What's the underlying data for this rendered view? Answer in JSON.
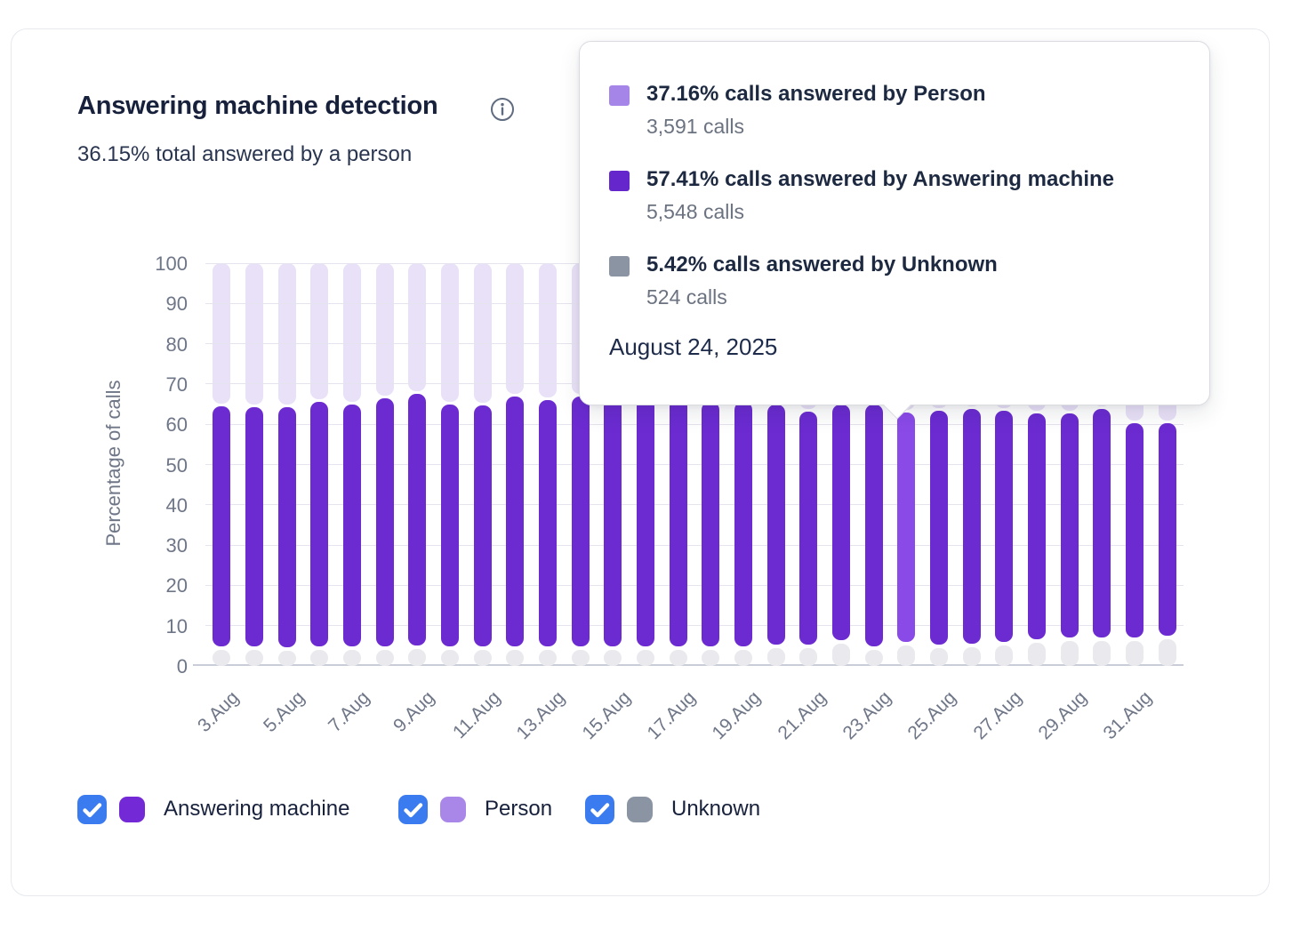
{
  "header": {
    "title": "Answering machine detection",
    "subtitle": "36.15% total answered by a person"
  },
  "tooltip": {
    "date": "August 24, 2025",
    "rows": [
      {
        "label": "37.16% calls answered by Person",
        "sublabel": "3,591 calls",
        "color": "#a685e8"
      },
      {
        "label": "57.41% calls answered by Answering machine",
        "sublabel": "5,548 calls",
        "color": "#6527cc"
      },
      {
        "label": "5.42% calls answered by Unknown",
        "sublabel": "524 calls",
        "color": "#8b94a3"
      }
    ]
  },
  "chart_data": {
    "type": "bar",
    "stacked": true,
    "title": "Answering machine detection",
    "ylabel": "Percentage of calls",
    "ylim": [
      0,
      100
    ],
    "y_ticks": [
      0,
      10,
      20,
      30,
      40,
      50,
      60,
      70,
      80,
      90,
      100
    ],
    "grid": true,
    "legend_position": "bottom",
    "x_tick_every": 2,
    "categories": [
      "3.Aug",
      "4.Aug",
      "5.Aug",
      "6.Aug",
      "7.Aug",
      "8.Aug",
      "9.Aug",
      "10.Aug",
      "11.Aug",
      "12.Aug",
      "13.Aug",
      "14.Aug",
      "15.Aug",
      "16.Aug",
      "17.Aug",
      "18.Aug",
      "19.Aug",
      "20.Aug",
      "21.Aug",
      "22.Aug",
      "23.Aug",
      "24.Aug",
      "25.Aug",
      "26.Aug",
      "27.Aug",
      "28.Aug",
      "29.Aug",
      "30.Aug",
      "31.Aug",
      "1.Sep"
    ],
    "series": [
      {
        "name": "Unknown",
        "stack_position": "bottom",
        "color": "#e9e9ee",
        "values": [
          4.4,
          4.4,
          4.2,
          4.4,
          4.4,
          4.4,
          4.6,
          4.4,
          4.4,
          4.4,
          4.4,
          4.4,
          4.4,
          4.4,
          4.4,
          4.4,
          4.4,
          4.8,
          4.8,
          5.9,
          4.4,
          5.42,
          4.8,
          5.1,
          5.5,
          6.2,
          6.6,
          6.6,
          6.6,
          7.0
        ]
      },
      {
        "name": "Answering machine",
        "stack_position": "middle",
        "color": "#6b2bd1",
        "values": [
          60.1,
          59.8,
          60.0,
          61.2,
          60.6,
          62.1,
          63.0,
          60.6,
          60.2,
          62.6,
          61.6,
          62.6,
          62.1,
          62.1,
          62.1,
          61.1,
          61.1,
          60.0,
          58.4,
          59.1,
          60.6,
          57.41,
          58.6,
          58.8,
          57.9,
          56.6,
          56.2,
          57.3,
          53.7,
          53.3
        ]
      },
      {
        "name": "Person",
        "stack_position": "top",
        "color": "#e9e1f7",
        "values": [
          35.5,
          35.8,
          35.8,
          34.4,
          35.0,
          33.5,
          32.4,
          35.0,
          35.4,
          33.0,
          34.0,
          33.0,
          33.5,
          33.5,
          33.5,
          34.5,
          34.5,
          35.2,
          36.8,
          35.0,
          35.0,
          37.16,
          36.6,
          36.1,
          36.6,
          37.2,
          37.2,
          36.1,
          39.7,
          39.7
        ]
      }
    ],
    "highlighted_category": "24.Aug",
    "highlight_index": 21,
    "highlight_color": "#8a4ae8"
  },
  "legend": {
    "checkbox_color": "#3b7bf0",
    "items": [
      {
        "label": "Answering machine",
        "checked": true,
        "swatch_color": "#7329d6"
      },
      {
        "label": "Person",
        "checked": true,
        "swatch_color": "#a987e8"
      },
      {
        "label": "Unknown",
        "checked": true,
        "swatch_color": "#8b94a3"
      }
    ]
  }
}
